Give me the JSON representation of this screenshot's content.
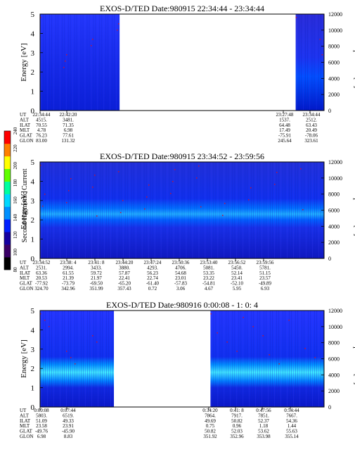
{
  "chart_data": [
    {
      "type": "heatmap",
      "title": "EXOS-D/TED   Date:980915  22:34:44 - 23:34:44",
      "ylabel": "Energy [eV]",
      "ylabel_right": "Temperature [K]",
      "ylim": [
        0,
        5
      ],
      "yticks": [
        "0",
        "1",
        "2",
        "3",
        "4",
        "5"
      ],
      "ylim_right": [
        0,
        12000
      ],
      "yticks_right": [
        "0",
        "2000",
        "4000",
        "6000",
        "8000",
        "10000",
        "12000"
      ],
      "data_segments": [
        {
          "start_frac": 0.0,
          "end_frac": 0.28,
          "spectrum": "uniform-low",
          "peak_energy": null
        },
        {
          "start_frac": 0.9,
          "end_frac": 1.0,
          "spectrum": "rising",
          "peak_energy": 2.5
        }
      ],
      "orbit_table": {
        "row_labels": [
          "UT",
          "ALT",
          "ILAT",
          "MLT",
          "GLAT",
          "GLON"
        ],
        "columns": [
          {
            "values": [
              "22:34:44",
              "4515.",
              "70.55",
              "4.78",
              "76.23",
              "83.00"
            ]
          },
          {
            "values": [
              "22:42:20",
              "3481.",
              "71.35",
              "6.98",
              "77.61",
              "131.32"
            ]
          },
          {
            "values": [
              "23:27:48",
              "1537.",
              "64.48",
              "17.49",
              "-75.91",
              "245.64"
            ]
          },
          {
            "values": [
              "23:34:44",
              "2512.",
              "63.43",
              "20.49",
              "-78.06",
              "323.61"
            ]
          }
        ]
      }
    },
    {
      "type": "heatmap",
      "title": "EXOS-D/TED   Date:980915  23:34:52 - 23:59:56",
      "ylabel": "Energy [eV]",
      "ylabel_right": "Temperature [K]",
      "ylim": [
        0,
        5
      ],
      "yticks": [
        "0",
        "1",
        "2",
        "3",
        "4",
        "5"
      ],
      "ylim_right": [
        0,
        12000
      ],
      "yticks_right": [
        "0",
        "2000",
        "4000",
        "6000",
        "8000",
        "10000",
        "12000"
      ],
      "data_segments": [
        {
          "start_frac": 0.0,
          "end_frac": 1.0,
          "spectrum": "band",
          "peak_energy": 2.2
        }
      ],
      "colorbar": {
        "label": "Second Harmonic Current",
        "range": [
          80,
          240
        ],
        "ticks": [
          "80",
          "100",
          "120",
          "140",
          "160",
          "180",
          "200",
          "220",
          "240"
        ],
        "colors": [
          "#000000",
          "#3a0066",
          "#1400a0",
          "#0020ff",
          "#0090ff",
          "#00d8ff",
          "#00ffa0",
          "#60ff00",
          "#ffff00",
          "#ff8000",
          "#ff0000"
        ]
      },
      "orbit_table": {
        "row_labels": [
          "UT",
          "ALT",
          "ILAT",
          "MLT",
          "GLAT",
          "GLON"
        ],
        "columns": [
          {
            "values": [
              "23:34:52",
              "2531.",
              "63.36",
              "20.53",
              "-77.92",
              "324.70"
            ]
          },
          {
            "values": [
              "23:38: 4",
              "2994.",
              "61.55",
              "21.39",
              "-73.79",
              "342.96"
            ]
          },
          {
            "values": [
              "23:41: 8",
              "3433.",
              "59.72",
              "21.97",
              "-69.50",
              "351.99"
            ]
          },
          {
            "values": [
              "23:44:20",
              "3880.",
              "57.87",
              "22.41",
              "-65.20",
              "357.43"
            ]
          },
          {
            "values": [
              "23:47:24",
              "4293.",
              "56.23",
              "22.74",
              "-61.40",
              "0.72"
            ]
          },
          {
            "values": [
              "23:50:36",
              "4706.",
              "54.68",
              "23.01",
              "-57.83",
              "3.06"
            ]
          },
          {
            "values": [
              "23:53:40",
              "5081.",
              "53.35",
              "23.22",
              "-54.81",
              "4.67"
            ]
          },
          {
            "values": [
              "23:56:52",
              "5450.",
              "52.14",
              "23.41",
              "-52.10",
              "5.95"
            ]
          },
          {
            "values": [
              "23:59:56",
              "5781.",
              "51.15",
              "23.57",
              "-49.89",
              "6.93"
            ]
          }
        ]
      }
    },
    {
      "type": "heatmap",
      "title": "EXOS-D/TED   Date:980916  0:00:08 - 1: 0: 4",
      "ylabel": "Energy [eV]",
      "ylabel_right": "Temperature [K]",
      "ylim": [
        0,
        5
      ],
      "yticks": [
        "0",
        "1",
        "2",
        "3",
        "4",
        "5"
      ],
      "ylim_right": [
        0,
        12000
      ],
      "yticks_right": [
        "0",
        "2000",
        "4000",
        "6000",
        "8000",
        "10000",
        "12000"
      ],
      "data_segments": [
        {
          "start_frac": 0.0,
          "end_frac": 0.26,
          "spectrum": "band",
          "peak_energy": 2.0
        },
        {
          "start_frac": 0.6,
          "end_frac": 1.0,
          "spectrum": "band",
          "peak_energy": 1.9
        }
      ],
      "orbit_table": {
        "row_labels": [
          "UT",
          "ALT",
          "ILAT",
          "MLT",
          "GLAT",
          "GLON"
        ],
        "columns": [
          {
            "values": [
              "0:00:08",
              "5803.",
              "51.09",
              "23.58",
              "-49.76",
              "6.98"
            ]
          },
          {
            "values": [
              "0:07:44",
              "6519.",
              "49.33",
              "23.91",
              "-45.90",
              "8.83"
            ]
          },
          {
            "values": [
              "0:34:20",
              "7864.",
              "49.69",
              "0.75",
              "50.82",
              "351.92"
            ]
          },
          {
            "values": [
              "0:41: 8",
              "7917.",
              "50.82",
              "0.96",
              "52.03",
              "352.96"
            ]
          },
          {
            "values": [
              "0:47:56",
              "7851.",
              "52.37",
              "1.18",
              "53.62",
              "353.98"
            ]
          },
          {
            "values": [
              "0:54:44",
              "7667.",
              "54.36",
              "1.44",
              "55.63",
              "355.14"
            ]
          }
        ]
      }
    }
  ]
}
